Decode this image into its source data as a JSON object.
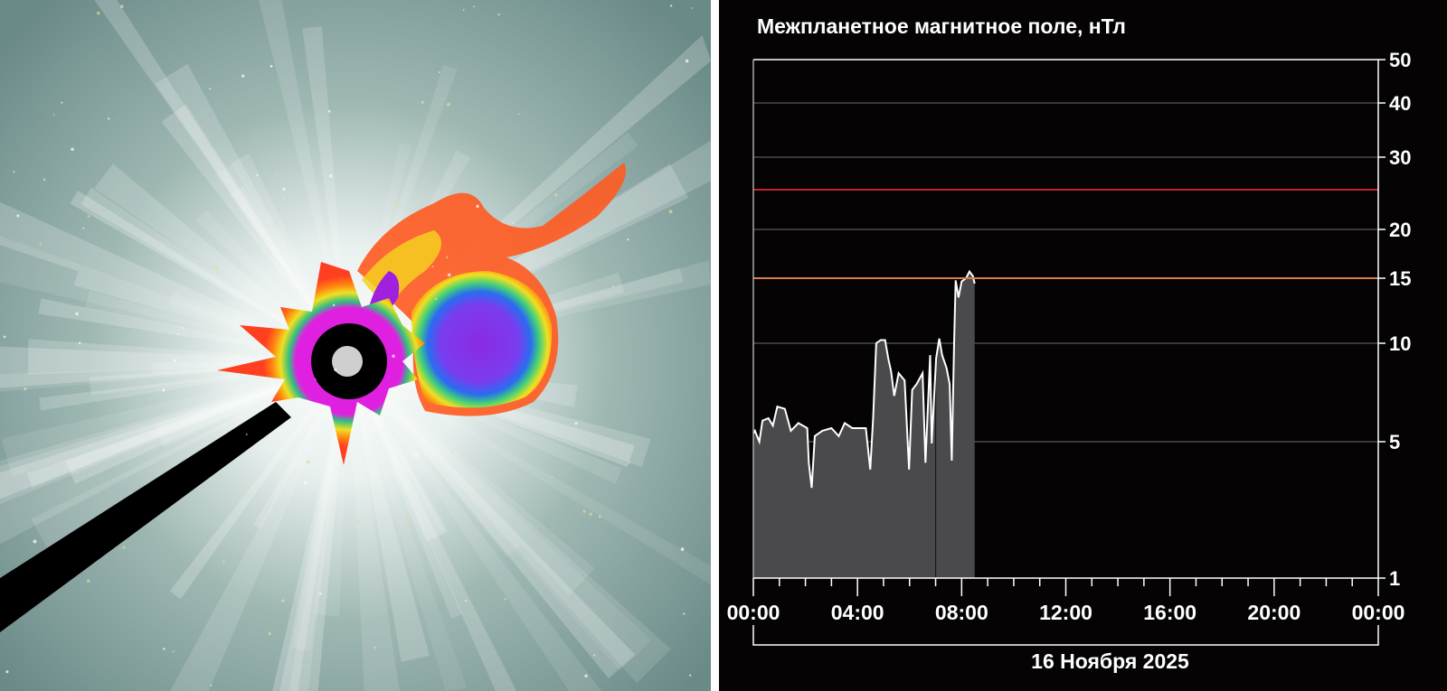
{
  "left_image": {
    "description_icon": "coronagraph-image",
    "colors": {
      "background": "#6d8e8b",
      "occulter": "#000000",
      "sun_disk": "#cfcfcf"
    }
  },
  "chart_data": {
    "type": "area",
    "title": "Межпланетное магнитное поле, нТл",
    "xlabel": "16 Ноября 2025",
    "ylabel": "",
    "x_unit": "hours",
    "x_tick_labels": [
      "00:00",
      "04:00",
      "08:00",
      "12:00",
      "16:00",
      "20:00",
      "00:00"
    ],
    "x_ticks_hours": [
      0,
      4,
      8,
      12,
      16,
      20,
      24
    ],
    "xlim": [
      0,
      24
    ],
    "y_ticks": [
      1,
      5,
      10,
      15,
      20,
      30,
      40,
      50
    ],
    "y_tick_labels": [
      "1",
      "5",
      "10",
      "15",
      "20",
      "30",
      "40",
      "50"
    ],
    "ylim": [
      1,
      50
    ],
    "y_scale": "nonlinear (compressed log)",
    "grid": true,
    "thresholds": [
      {
        "value": 15,
        "color": "#d9804a"
      },
      {
        "value": 25,
        "color": "#c42424"
      }
    ],
    "marker_hour": 7.0,
    "colors": {
      "fill": "#4a494c",
      "line": "#ffffff",
      "grid": "#5a5a5a",
      "background": "#050304"
    },
    "series": [
      {
        "x": [
          0.0,
          0.06,
          0.23,
          0.35,
          0.58,
          0.75,
          0.92,
          1.21,
          1.44,
          1.73,
          2.07,
          2.13,
          2.24,
          2.36,
          2.65,
          3.0,
          3.28,
          3.51,
          3.8,
          4.03,
          4.32,
          4.49,
          4.6,
          4.72,
          4.89,
          5.06,
          5.18,
          5.29,
          5.41,
          5.58,
          5.81,
          5.98,
          6.1,
          6.27,
          6.5,
          6.61,
          6.79,
          6.85,
          7.02,
          7.14,
          7.25,
          7.42,
          7.54,
          7.62,
          7.71,
          7.77,
          7.88,
          8.0,
          8.17,
          8.3,
          8.43,
          8.5
        ],
        "y": [
          5.3,
          5.4,
          5.0,
          5.8,
          5.9,
          5.6,
          6.4,
          6.3,
          5.4,
          5.7,
          5.5,
          3.9,
          2.9,
          5.2,
          5.4,
          5.5,
          5.2,
          5.7,
          5.5,
          5.5,
          5.5,
          3.6,
          5.9,
          10.0,
          10.2,
          10.2,
          9.0,
          8.2,
          6.9,
          8.1,
          7.7,
          3.6,
          7.2,
          7.5,
          8.1,
          3.9,
          9.2,
          4.9,
          9.0,
          10.3,
          9.2,
          8.4,
          7.5,
          4.0,
          10.0,
          14.8,
          13.3,
          14.7,
          15.0,
          15.6,
          15.2,
          14.5
        ]
      }
    ]
  }
}
